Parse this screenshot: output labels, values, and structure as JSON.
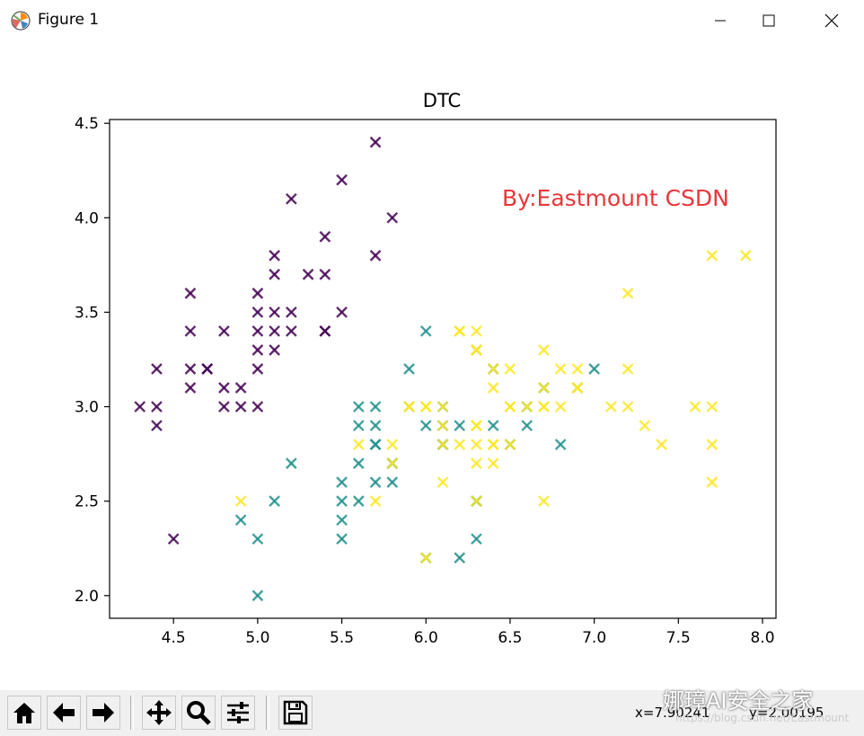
{
  "window": {
    "title": "Figure 1"
  },
  "colors": {
    "class0": "#440154",
    "class1": "#21908d",
    "class2": "#fde725",
    "annotation": "#e8373a"
  },
  "chart_data": {
    "type": "scatter",
    "title": "DTC",
    "annotation": "By:Eastmount CSDN",
    "xlabel": "",
    "ylabel": "",
    "xlim": [
      4.12,
      8.08
    ],
    "ylim": [
      1.88,
      4.52
    ],
    "xticks": [
      "4.5",
      "5.0",
      "5.5",
      "6.0",
      "6.5",
      "7.0",
      "7.5",
      "8.0"
    ],
    "yticks": [
      "2.0",
      "2.5",
      "3.0",
      "3.5",
      "4.0",
      "4.5"
    ],
    "marker": "x",
    "series": [
      {
        "values": [
          [
            5.1,
            3.5
          ],
          [
            4.9,
            3.0
          ],
          [
            4.7,
            3.2
          ],
          [
            4.6,
            3.1
          ],
          [
            5.0,
            3.6
          ],
          [
            5.4,
            3.9
          ],
          [
            4.6,
            3.4
          ],
          [
            5.0,
            3.4
          ],
          [
            4.4,
            2.9
          ],
          [
            4.9,
            3.1
          ],
          [
            5.4,
            3.7
          ],
          [
            4.8,
            3.4
          ],
          [
            4.8,
            3.0
          ],
          [
            4.3,
            3.0
          ],
          [
            5.8,
            4.0
          ],
          [
            5.7,
            4.4
          ],
          [
            5.1,
            3.8
          ],
          [
            5.7,
            3.8
          ],
          [
            5.4,
            3.4
          ],
          [
            5.1,
            3.7
          ],
          [
            4.6,
            3.6
          ],
          [
            5.1,
            3.3
          ],
          [
            4.8,
            3.1
          ],
          [
            5.0,
            3.0
          ],
          [
            5.0,
            3.2
          ],
          [
            5.2,
            3.5
          ],
          [
            5.2,
            3.4
          ],
          [
            4.7,
            3.2
          ],
          [
            5.4,
            3.4
          ],
          [
            5.2,
            4.1
          ],
          [
            5.5,
            4.2
          ],
          [
            5.5,
            3.5
          ],
          [
            4.4,
            3.0
          ],
          [
            5.1,
            3.4
          ],
          [
            5.0,
            3.5
          ],
          [
            4.5,
            2.3
          ],
          [
            4.4,
            3.2
          ],
          [
            5.3,
            3.7
          ],
          [
            4.6,
            3.2
          ],
          [
            5.0,
            3.3
          ]
        ]
      },
      {
        "values": [
          [
            7.0,
            3.2
          ],
          [
            6.4,
            3.2
          ],
          [
            6.9,
            3.1
          ],
          [
            5.5,
            2.3
          ],
          [
            6.5,
            2.8
          ],
          [
            5.7,
            2.8
          ],
          [
            6.3,
            3.3
          ],
          [
            4.9,
            2.4
          ],
          [
            6.6,
            2.9
          ],
          [
            5.2,
            2.7
          ],
          [
            5.0,
            2.0
          ],
          [
            5.9,
            3.0
          ],
          [
            6.0,
            2.2
          ],
          [
            6.1,
            2.9
          ],
          [
            5.6,
            2.9
          ],
          [
            6.7,
            3.1
          ],
          [
            5.6,
            3.0
          ],
          [
            5.8,
            2.7
          ],
          [
            6.2,
            2.2
          ],
          [
            5.6,
            2.5
          ],
          [
            6.1,
            2.8
          ],
          [
            6.3,
            2.5
          ],
          [
            6.4,
            2.9
          ],
          [
            6.6,
            3.0
          ],
          [
            6.8,
            2.8
          ],
          [
            6.0,
            2.9
          ],
          [
            5.7,
            2.6
          ],
          [
            5.5,
            2.4
          ],
          [
            5.5,
            2.5
          ],
          [
            5.8,
            2.7
          ],
          [
            6.0,
            3.4
          ],
          [
            6.3,
            2.3
          ],
          [
            5.6,
            2.7
          ],
          [
            5.5,
            2.6
          ],
          [
            6.1,
            3.0
          ],
          [
            5.8,
            2.6
          ],
          [
            5.0,
            2.3
          ],
          [
            5.7,
            3.0
          ],
          [
            5.7,
            2.9
          ],
          [
            6.2,
            2.9
          ],
          [
            5.1,
            2.5
          ],
          [
            5.7,
            2.8
          ],
          [
            5.9,
            3.2
          ],
          [
            6.1,
            2.8
          ],
          [
            6.3,
            2.5
          ]
        ]
      },
      {
        "values": [
          [
            6.3,
            3.3
          ],
          [
            5.8,
            2.7
          ],
          [
            7.1,
            3.0
          ],
          [
            6.3,
            2.9
          ],
          [
            6.5,
            3.0
          ],
          [
            7.6,
            3.0
          ],
          [
            4.9,
            2.5
          ],
          [
            7.3,
            2.9
          ],
          [
            6.7,
            2.5
          ],
          [
            7.2,
            3.6
          ],
          [
            6.5,
            3.2
          ],
          [
            6.4,
            2.7
          ],
          [
            6.8,
            3.0
          ],
          [
            5.7,
            2.5
          ],
          [
            5.8,
            2.8
          ],
          [
            6.4,
            3.2
          ],
          [
            7.7,
            3.8
          ],
          [
            7.7,
            2.6
          ],
          [
            6.0,
            2.2
          ],
          [
            6.9,
            3.2
          ],
          [
            5.6,
            2.8
          ],
          [
            7.7,
            2.8
          ],
          [
            6.3,
            2.7
          ],
          [
            6.7,
            3.3
          ],
          [
            7.2,
            3.2
          ],
          [
            6.2,
            2.8
          ],
          [
            6.1,
            3.0
          ],
          [
            6.4,
            2.8
          ],
          [
            7.2,
            3.0
          ],
          [
            7.4,
            2.8
          ],
          [
            7.9,
            3.8
          ],
          [
            6.3,
            2.8
          ],
          [
            6.1,
            2.6
          ],
          [
            7.7,
            3.0
          ],
          [
            6.3,
            3.4
          ],
          [
            6.4,
            3.1
          ],
          [
            6.0,
            3.0
          ],
          [
            6.9,
            3.1
          ],
          [
            6.7,
            3.1
          ],
          [
            6.8,
            3.2
          ],
          [
            6.7,
            3.0
          ],
          [
            6.5,
            3.0
          ],
          [
            6.2,
            3.4
          ],
          [
            5.9,
            3.0
          ],
          [
            6.2,
            3.4
          ],
          [
            6.3,
            2.5
          ],
          [
            6.4,
            2.8
          ],
          [
            6.1,
            2.8
          ],
          [
            6.6,
            3.0
          ],
          [
            6.0,
            3.0
          ],
          [
            5.9,
            3.0
          ],
          [
            6.5,
            2.8
          ],
          [
            6.7,
            3.0
          ],
          [
            6.9,
            3.1
          ],
          [
            6.3,
            3.3
          ],
          [
            6.1,
            2.9
          ],
          [
            6.3,
            2.9
          ]
        ]
      }
    ]
  },
  "toolbar": {
    "coord_x": "x=7.90241",
    "coord_y": "y=2.00195",
    "buttons": [
      "home-icon",
      "back-icon",
      "forward-icon",
      "pan-icon",
      "zoom-icon",
      "configure-icon",
      "save-icon"
    ]
  },
  "watermark": {
    "name": "娜璋AI安全之家",
    "url": "https://blog.csdn.net/Eastmount"
  }
}
